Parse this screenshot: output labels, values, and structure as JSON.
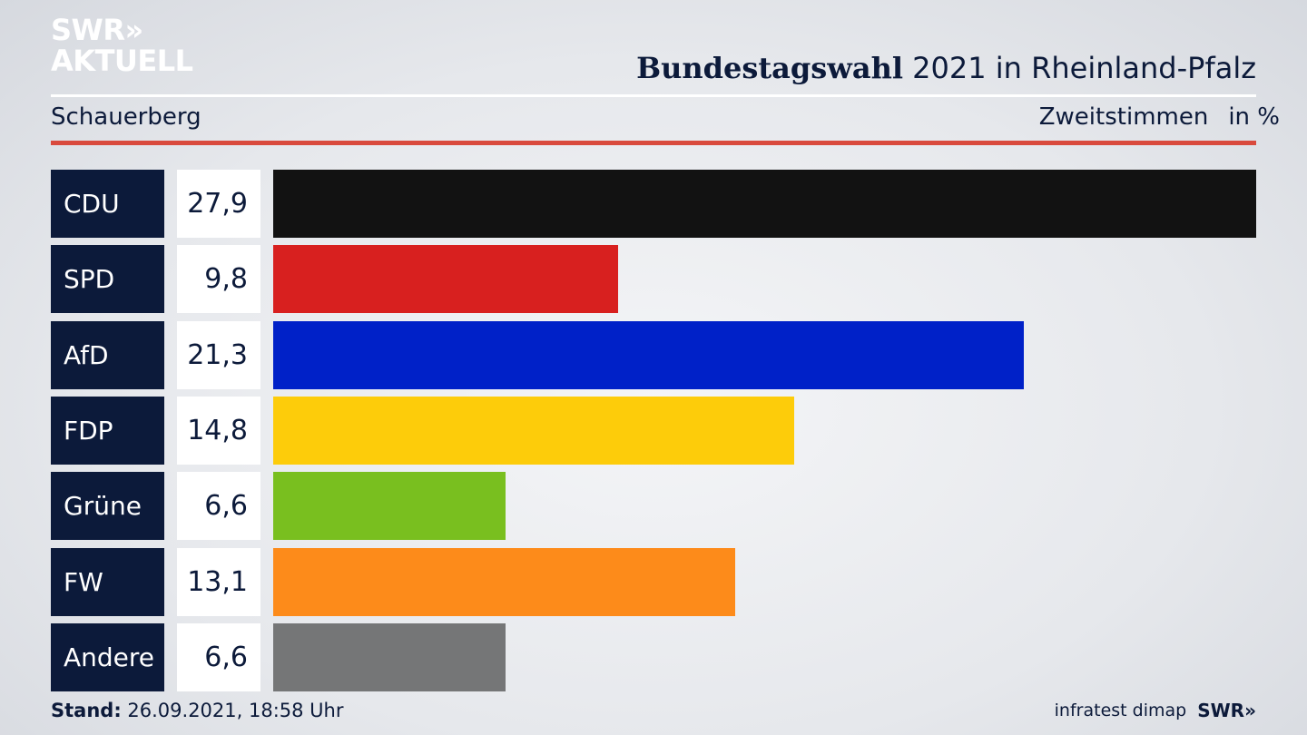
{
  "logo": {
    "line1": "SWR»",
    "line2": "AKTUELL"
  },
  "header": {
    "title_bold": "Bundestagswahl",
    "title_rest": " 2021 in Rheinland-Pfalz",
    "location": "Schauerberg",
    "measure": "Zweitstimmen",
    "unit": "in %"
  },
  "colors": {
    "label_bg": "#0c1a3a",
    "accent_rule": "#d94a3d"
  },
  "chart_data": {
    "type": "bar",
    "orientation": "horizontal",
    "categories": [
      "CDU",
      "SPD",
      "AfD",
      "FDP",
      "Grüne",
      "FW",
      "Andere"
    ],
    "values": [
      27.9,
      9.8,
      21.3,
      14.8,
      6.6,
      13.1,
      6.6
    ],
    "value_labels": [
      "27,9",
      "9,8",
      "21,3",
      "14,8",
      "6,6",
      "13,1",
      "6,6"
    ],
    "colors": [
      "#121212",
      "#d8201f",
      "#0021c8",
      "#fdcc0a",
      "#79bf1f",
      "#fd8b1a",
      "#757677"
    ]
  },
  "footer": {
    "stand_label": "Stand:",
    "stand_value": " 26.09.2021, 18:58 Uhr",
    "source": "infratest dimap",
    "brand": "SWR»"
  }
}
